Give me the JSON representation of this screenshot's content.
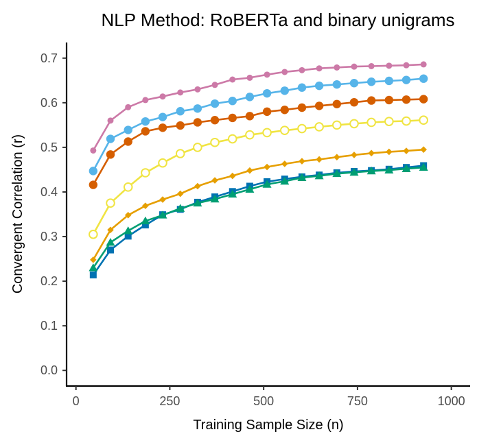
{
  "chart_data": {
    "type": "line",
    "title": "NLP Method: RoBERTa and binary unigrams",
    "xlabel": "Training Sample Size (n)",
    "ylabel": "Convergent Correlation (r)",
    "xlim": [
      -25,
      1050
    ],
    "ylim": [
      -0.035,
      0.735
    ],
    "xticks": [
      0,
      250,
      500,
      750,
      1000
    ],
    "xtick_labels": [
      "0",
      "250",
      "500",
      "750",
      "1000"
    ],
    "yticks": [
      0.0,
      0.1,
      0.2,
      0.3,
      0.4,
      0.5,
      0.6,
      0.7
    ],
    "ytick_labels": [
      "0.0",
      "0.1",
      "0.2",
      "0.3",
      "0.4",
      "0.5",
      "0.6",
      "0.7"
    ],
    "grid": false,
    "legend": "none",
    "x": [
      46,
      92,
      139,
      185,
      231,
      278,
      324,
      370,
      417,
      463,
      509,
      556,
      602,
      648,
      695,
      741,
      787,
      834,
      880,
      926
    ],
    "series": [
      {
        "color": "#CC79A7",
        "marker": "dot",
        "values": [
          0.493,
          0.56,
          0.59,
          0.606,
          0.614,
          0.623,
          0.63,
          0.64,
          0.652,
          0.656,
          0.663,
          0.669,
          0.673,
          0.677,
          0.679,
          0.681,
          0.682,
          0.683,
          0.684,
          0.686
        ]
      },
      {
        "color": "#56B4E9",
        "marker": "circle-filled",
        "values": [
          0.447,
          0.519,
          0.539,
          0.558,
          0.568,
          0.581,
          0.587,
          0.598,
          0.604,
          0.613,
          0.621,
          0.627,
          0.634,
          0.638,
          0.641,
          0.644,
          0.647,
          0.649,
          0.651,
          0.654
        ]
      },
      {
        "color": "#D55E00",
        "marker": "circle-filled",
        "values": [
          0.416,
          0.484,
          0.513,
          0.536,
          0.544,
          0.549,
          0.556,
          0.561,
          0.566,
          0.57,
          0.58,
          0.584,
          0.589,
          0.593,
          0.597,
          0.601,
          0.605,
          0.606,
          0.607,
          0.608
        ]
      },
      {
        "color": "#F0E442",
        "marker": "circle-open",
        "values": [
          0.305,
          0.375,
          0.411,
          0.443,
          0.465,
          0.486,
          0.5,
          0.511,
          0.519,
          0.528,
          0.533,
          0.538,
          0.542,
          0.546,
          0.55,
          0.553,
          0.556,
          0.558,
          0.559,
          0.561
        ]
      },
      {
        "color": "#E69F00",
        "marker": "diamond",
        "values": [
          0.248,
          0.315,
          0.348,
          0.369,
          0.383,
          0.396,
          0.413,
          0.426,
          0.436,
          0.448,
          0.456,
          0.463,
          0.469,
          0.473,
          0.478,
          0.483,
          0.487,
          0.49,
          0.492,
          0.495
        ]
      },
      {
        "color": "#0072B2",
        "marker": "square",
        "values": [
          0.214,
          0.27,
          0.301,
          0.326,
          0.349,
          0.361,
          0.377,
          0.389,
          0.401,
          0.413,
          0.423,
          0.429,
          0.434,
          0.438,
          0.443,
          0.446,
          0.448,
          0.451,
          0.455,
          0.459
        ]
      },
      {
        "color": "#009E73",
        "marker": "triangle",
        "values": [
          0.23,
          0.287,
          0.313,
          0.335,
          0.348,
          0.363,
          0.375,
          0.384,
          0.395,
          0.406,
          0.417,
          0.424,
          0.432,
          0.436,
          0.441,
          0.444,
          0.447,
          0.449,
          0.452,
          0.455
        ]
      }
    ]
  }
}
